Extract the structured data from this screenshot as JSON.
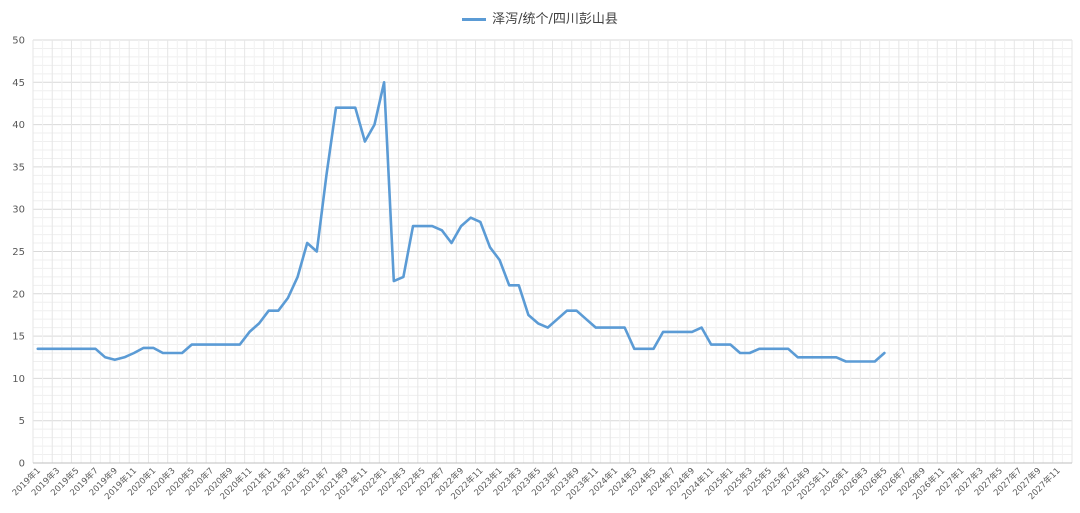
{
  "chart_data": {
    "type": "line",
    "legend_position": "top",
    "grid": true,
    "ylim": [
      0,
      50
    ],
    "y_ticks": [
      0,
      5,
      10,
      15,
      20,
      25,
      30,
      35,
      40,
      45,
      50
    ],
    "x_tick_labels": [
      "2019年1",
      "2019年3",
      "2019年5",
      "2019年7",
      "2019年9",
      "2019年11",
      "2020年1",
      "2020年3",
      "2020年5",
      "2020年7",
      "2020年9",
      "2020年11",
      "2021年1",
      "2021年3",
      "2021年5",
      "2021年7",
      "2021年9",
      "2021年11",
      "2022年1",
      "2022年3",
      "2022年5",
      "2022年7",
      "2022年9",
      "2022年11",
      "2023年1",
      "2023年3",
      "2023年5",
      "2023年7",
      "2023年9",
      "2023年11",
      "2024年1",
      "2024年3",
      "2024年5",
      "2024年7",
      "2024年9",
      "2024年11",
      "2025年1",
      "2025年3",
      "2025年5",
      "2025年7",
      "2025年9",
      "2025年11",
      "2026年1",
      "2026年3",
      "2026年5",
      "2026年7",
      "2026年9",
      "2026年11",
      "2027年1",
      "2027年3",
      "2027年5",
      "2027年7",
      "2027年9",
      "2027年11"
    ],
    "series": [
      {
        "name": "泽泻/统个/四川彭山县",
        "color": "#5b9bd5",
        "x": [
          0,
          1,
          2,
          3,
          4,
          5,
          6,
          7,
          8,
          9,
          10,
          11,
          12,
          13,
          14,
          15,
          16,
          17,
          18,
          19,
          20,
          21,
          22,
          23,
          24,
          25,
          26,
          27,
          28,
          29,
          30,
          31,
          32,
          33,
          34,
          35,
          36,
          37,
          38,
          39,
          40,
          41,
          42,
          43,
          44,
          45,
          46,
          47,
          48,
          49,
          50,
          51,
          52,
          53,
          54,
          55,
          56,
          57,
          58,
          59,
          60,
          61,
          62,
          63,
          64,
          65,
          66,
          67,
          68,
          69,
          70,
          71,
          72,
          73,
          74,
          75,
          76,
          77,
          78,
          79,
          80,
          81,
          82,
          83,
          84,
          85,
          86,
          87,
          88
        ],
        "values": [
          13.5,
          13.5,
          13.5,
          13.5,
          13.5,
          13.5,
          13.5,
          12.5,
          12.2,
          12.5,
          13,
          13.6,
          13.6,
          13,
          13,
          13,
          14,
          14,
          14,
          14,
          14,
          14,
          15.5,
          16.5,
          18,
          18,
          19.5,
          22,
          26,
          25,
          34,
          42,
          42,
          42,
          38,
          40,
          45,
          21.5,
          22,
          28,
          28,
          28,
          27.5,
          26,
          28,
          29,
          28.5,
          25.5,
          24,
          21,
          21,
          17.5,
          16.5,
          16,
          17,
          18,
          18,
          17,
          16,
          16,
          16,
          16,
          13.5,
          13.5,
          13.5,
          15.5,
          15.5,
          15.5,
          15.5,
          16,
          14,
          14,
          14,
          13,
          13,
          13.5,
          13.5,
          13.5,
          13.5,
          12.5,
          12.5,
          12.5,
          12.5,
          12.5,
          12,
          12,
          12,
          12,
          13
        ]
      }
    ]
  }
}
